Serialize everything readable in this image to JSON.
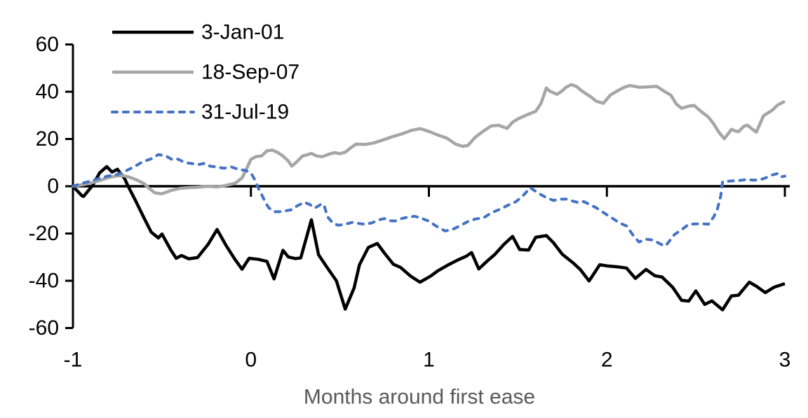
{
  "chart_data": {
    "type": "line",
    "title": "",
    "xlabel": "Months around first ease",
    "ylabel": "",
    "xlim": [
      -1,
      3
    ],
    "ylim": [
      -60,
      60
    ],
    "x_ticks": [
      -1,
      0,
      1,
      2,
      3
    ],
    "y_ticks": [
      60,
      40,
      20,
      0,
      -20,
      -40,
      -60
    ],
    "grid": false,
    "legend_position": "top-left",
    "colors": {
      "axis": "#000000",
      "tick_label": "#000000",
      "xlabel": "#595959",
      "background": "#ffffff"
    },
    "series": [
      {
        "name": "3-Jan-01",
        "color": "#000000",
        "style": "solid",
        "width": 4.5,
        "points": [
          [
            -1,
            0
          ],
          [
            -0.95,
            -4
          ],
          [
            -0.94,
            -4.3
          ],
          [
            -0.89,
            0.3
          ],
          [
            -0.85,
            5.7
          ],
          [
            -0.81,
            8.3
          ],
          [
            -0.78,
            6
          ],
          [
            -0.75,
            7.2
          ],
          [
            -0.71,
            3.3
          ],
          [
            -0.69,
            0
          ],
          [
            -0.65,
            -5.8
          ],
          [
            -0.6,
            -13.5
          ],
          [
            -0.56,
            -19.4
          ],
          [
            -0.52,
            -21.9
          ],
          [
            -0.5,
            -20.2
          ],
          [
            -0.45,
            -27
          ],
          [
            -0.42,
            -30.5
          ],
          [
            -0.39,
            -29.3
          ],
          [
            -0.35,
            -30.7
          ],
          [
            -0.3,
            -30.2
          ],
          [
            -0.24,
            -24.5
          ],
          [
            -0.19,
            -18.3
          ],
          [
            -0.14,
            -25
          ],
          [
            -0.09,
            -30.9
          ],
          [
            -0.05,
            -35.1
          ],
          [
            -0.01,
            -30.5
          ],
          [
            0.04,
            -30.9
          ],
          [
            0.09,
            -31.8
          ],
          [
            0.13,
            -39.2
          ],
          [
            0.18,
            -27.1
          ],
          [
            0.21,
            -29.9
          ],
          [
            0.25,
            -30.6
          ],
          [
            0.28,
            -30.3
          ],
          [
            0.34,
            -14.2
          ],
          [
            0.38,
            -29
          ],
          [
            0.43,
            -34.6
          ],
          [
            0.48,
            -40
          ],
          [
            0.53,
            -52
          ],
          [
            0.58,
            -43
          ],
          [
            0.61,
            -33.2
          ],
          [
            0.66,
            -25.9
          ],
          [
            0.71,
            -24.2
          ],
          [
            0.75,
            -28.3
          ],
          [
            0.8,
            -33
          ],
          [
            0.84,
            -34.3
          ],
          [
            0.9,
            -38.2
          ],
          [
            0.95,
            -40.6
          ],
          [
            1.01,
            -38
          ],
          [
            1.05,
            -35.8
          ],
          [
            1.11,
            -33.2
          ],
          [
            1.16,
            -31.3
          ],
          [
            1.21,
            -29.6
          ],
          [
            1.24,
            -28.1
          ],
          [
            1.28,
            -35
          ],
          [
            1.33,
            -31.5
          ],
          [
            1.37,
            -28.9
          ],
          [
            1.42,
            -24.7
          ],
          [
            1.47,
            -21.2
          ],
          [
            1.51,
            -26.8
          ],
          [
            1.56,
            -27
          ],
          [
            1.6,
            -21.6
          ],
          [
            1.66,
            -20.9
          ],
          [
            1.7,
            -23.9
          ],
          [
            1.75,
            -28.8
          ],
          [
            1.81,
            -32.4
          ],
          [
            1.85,
            -35.2
          ],
          [
            1.9,
            -40.1
          ],
          [
            1.96,
            -33.2
          ],
          [
            2,
            -33.7
          ],
          [
            2.06,
            -34.1
          ],
          [
            2.11,
            -34.6
          ],
          [
            2.16,
            -39
          ],
          [
            2.22,
            -35.2
          ],
          [
            2.27,
            -37.9
          ],
          [
            2.31,
            -38.4
          ],
          [
            2.37,
            -42.8
          ],
          [
            2.42,
            -48.3
          ],
          [
            2.46,
            -48.6
          ],
          [
            2.5,
            -44.3
          ],
          [
            2.55,
            -50
          ],
          [
            2.59,
            -48.5
          ],
          [
            2.65,
            -52.3
          ],
          [
            2.7,
            -46.4
          ],
          [
            2.74,
            -46.1
          ],
          [
            2.8,
            -40.6
          ],
          [
            2.84,
            -42.3
          ],
          [
            2.89,
            -45
          ],
          [
            2.94,
            -42.7
          ],
          [
            3,
            -41.2
          ]
        ]
      },
      {
        "name": "18-Sep-07",
        "color": "#a6a6a6",
        "style": "solid",
        "width": 4.5,
        "points": [
          [
            -1,
            0
          ],
          [
            -0.95,
            0.6
          ],
          [
            -0.9,
            1.4
          ],
          [
            -0.85,
            2.4
          ],
          [
            -0.8,
            3.7
          ],
          [
            -0.75,
            4.4
          ],
          [
            -0.72,
            4.5
          ],
          [
            -0.68,
            3.8
          ],
          [
            -0.64,
            2.6
          ],
          [
            -0.6,
            1.1
          ],
          [
            -0.57,
            -1
          ],
          [
            -0.54,
            -2.8
          ],
          [
            -0.5,
            -3.2
          ],
          [
            -0.45,
            -1.8
          ],
          [
            -0.4,
            -0.9
          ],
          [
            -0.35,
            -0.6
          ],
          [
            -0.3,
            -0.4
          ],
          [
            -0.24,
            0
          ],
          [
            -0.19,
            -0.3
          ],
          [
            -0.15,
            0.2
          ],
          [
            -0.09,
            1.2
          ],
          [
            -0.05,
            3.5
          ],
          [
            -0.03,
            6.5
          ],
          [
            0,
            11.4
          ],
          [
            0.03,
            12.6
          ],
          [
            0.06,
            12.8
          ],
          [
            0.09,
            15
          ],
          [
            0.12,
            15.3
          ],
          [
            0.15,
            14.3
          ],
          [
            0.18,
            12.8
          ],
          [
            0.21,
            10.7
          ],
          [
            0.23,
            8.5
          ],
          [
            0.26,
            10.5
          ],
          [
            0.29,
            12.8
          ],
          [
            0.32,
            13.4
          ],
          [
            0.34,
            13.9
          ],
          [
            0.37,
            12.8
          ],
          [
            0.4,
            12.5
          ],
          [
            0.44,
            13.6
          ],
          [
            0.47,
            14.2
          ],
          [
            0.5,
            13.8
          ],
          [
            0.53,
            14.4
          ],
          [
            0.56,
            16.2
          ],
          [
            0.59,
            17.8
          ],
          [
            0.64,
            17.7
          ],
          [
            0.69,
            18.3
          ],
          [
            0.75,
            19.8
          ],
          [
            0.8,
            21.1
          ],
          [
            0.85,
            22.2
          ],
          [
            0.9,
            23.6
          ],
          [
            0.95,
            24.4
          ],
          [
            1,
            23.2
          ],
          [
            1.05,
            21.7
          ],
          [
            1.1,
            20.4
          ],
          [
            1.15,
            17.8
          ],
          [
            1.19,
            16.9
          ],
          [
            1.22,
            17.3
          ],
          [
            1.26,
            20.7
          ],
          [
            1.3,
            23
          ],
          [
            1.35,
            25.5
          ],
          [
            1.39,
            25.8
          ],
          [
            1.44,
            24.5
          ],
          [
            1.47,
            27.1
          ],
          [
            1.5,
            28.5
          ],
          [
            1.55,
            30.2
          ],
          [
            1.6,
            31.7
          ],
          [
            1.63,
            35.1
          ],
          [
            1.66,
            41.6
          ],
          [
            1.68,
            40.2
          ],
          [
            1.72,
            38.9
          ],
          [
            1.75,
            40.4
          ],
          [
            1.77,
            41.9
          ],
          [
            1.8,
            43
          ],
          [
            1.83,
            42.2
          ],
          [
            1.85,
            40.9
          ],
          [
            1.88,
            39.3
          ],
          [
            1.91,
            37.8
          ],
          [
            1.94,
            36
          ],
          [
            1.98,
            35.1
          ],
          [
            2.02,
            38.6
          ],
          [
            2.06,
            40.4
          ],
          [
            2.1,
            42
          ],
          [
            2.13,
            42.6
          ],
          [
            2.18,
            41.9
          ],
          [
            2.22,
            42
          ],
          [
            2.28,
            42.3
          ],
          [
            2.32,
            40.3
          ],
          [
            2.36,
            38.5
          ],
          [
            2.39,
            34.8
          ],
          [
            2.42,
            33
          ],
          [
            2.46,
            33.9
          ],
          [
            2.49,
            34.2
          ],
          [
            2.53,
            31.6
          ],
          [
            2.57,
            29.3
          ],
          [
            2.6,
            26.4
          ],
          [
            2.63,
            22.8
          ],
          [
            2.66,
            20.1
          ],
          [
            2.7,
            24.1
          ],
          [
            2.72,
            23.4
          ],
          [
            2.74,
            23.1
          ],
          [
            2.77,
            25.4
          ],
          [
            2.79,
            25.8
          ],
          [
            2.82,
            24
          ],
          [
            2.84,
            22.9
          ],
          [
            2.88,
            29.8
          ],
          [
            2.9,
            30.8
          ],
          [
            2.93,
            32.2
          ],
          [
            2.96,
            34.4
          ],
          [
            3,
            35.9
          ]
        ]
      },
      {
        "name": "31-Jul-19",
        "color": "#4472c4",
        "style": "dashed",
        "width": 4,
        "points": [
          [
            -1,
            0
          ],
          [
            -0.95,
            1.2
          ],
          [
            -0.9,
            2.2
          ],
          [
            -0.85,
            3.4
          ],
          [
            -0.8,
            4.4
          ],
          [
            -0.75,
            5
          ],
          [
            -0.7,
            6.6
          ],
          [
            -0.65,
            8.5
          ],
          [
            -0.61,
            10.3
          ],
          [
            -0.56,
            11.6
          ],
          [
            -0.52,
            13.4
          ],
          [
            -0.48,
            12.9
          ],
          [
            -0.44,
            11.2
          ],
          [
            -0.41,
            11.5
          ],
          [
            -0.37,
            10
          ],
          [
            -0.33,
            9.6
          ],
          [
            -0.3,
            9.1
          ],
          [
            -0.26,
            9.7
          ],
          [
            -0.23,
            8.5
          ],
          [
            -0.19,
            8.1
          ],
          [
            -0.15,
            7.6
          ],
          [
            -0.11,
            8.2
          ],
          [
            -0.07,
            7.1
          ],
          [
            -0.03,
            6.7
          ],
          [
            0,
            5.6
          ],
          [
            0.02,
            3
          ],
          [
            0.04,
            -0.6
          ],
          [
            0.06,
            -3.5
          ],
          [
            0.08,
            -6.6
          ],
          [
            0.1,
            -9.1
          ],
          [
            0.13,
            -10.8
          ],
          [
            0.16,
            -10.8
          ],
          [
            0.19,
            -10.5
          ],
          [
            0.23,
            -9.9
          ],
          [
            0.26,
            -8.3
          ],
          [
            0.3,
            -6.8
          ],
          [
            0.33,
            -7.7
          ],
          [
            0.36,
            -9.2
          ],
          [
            0.39,
            -7.8
          ],
          [
            0.41,
            -7.7
          ],
          [
            0.43,
            -12.9
          ],
          [
            0.46,
            -15.6
          ],
          [
            0.49,
            -16.5
          ],
          [
            0.53,
            -16.1
          ],
          [
            0.57,
            -15.3
          ],
          [
            0.61,
            -15.8
          ],
          [
            0.64,
            -16.1
          ],
          [
            0.68,
            -15.5
          ],
          [
            0.72,
            -14.2
          ],
          [
            0.75,
            -13.7
          ],
          [
            0.78,
            -14.6
          ],
          [
            0.81,
            -14.7
          ],
          [
            0.85,
            -13.6
          ],
          [
            0.88,
            -13.1
          ],
          [
            0.92,
            -12.7
          ],
          [
            0.95,
            -13.3
          ],
          [
            1,
            -14.8
          ],
          [
            1.04,
            -16.8
          ],
          [
            1.09,
            -18.9
          ],
          [
            1.13,
            -18.4
          ],
          [
            1.17,
            -16.9
          ],
          [
            1.22,
            -14.9
          ],
          [
            1.26,
            -13.9
          ],
          [
            1.31,
            -13.2
          ],
          [
            1.35,
            -11.3
          ],
          [
            1.4,
            -9.7
          ],
          [
            1.44,
            -8.2
          ],
          [
            1.49,
            -6.5
          ],
          [
            1.53,
            -3.9
          ],
          [
            1.57,
            -0.6
          ],
          [
            1.61,
            -2.7
          ],
          [
            1.65,
            -4.4
          ],
          [
            1.7,
            -6
          ],
          [
            1.73,
            -5.5
          ],
          [
            1.77,
            -5.4
          ],
          [
            1.8,
            -6.1
          ],
          [
            1.84,
            -6.9
          ],
          [
            1.87,
            -6.5
          ],
          [
            1.9,
            -7.6
          ],
          [
            1.94,
            -9.1
          ],
          [
            1.99,
            -11.6
          ],
          [
            2.03,
            -13.5
          ],
          [
            2.07,
            -15.5
          ],
          [
            2.11,
            -16.8
          ],
          [
            2.15,
            -21
          ],
          [
            2.18,
            -23.6
          ],
          [
            2.22,
            -22.4
          ],
          [
            2.26,
            -22.8
          ],
          [
            2.31,
            -24.8
          ],
          [
            2.33,
            -25.2
          ],
          [
            2.38,
            -20.4
          ],
          [
            2.42,
            -18.4
          ],
          [
            2.46,
            -16.1
          ],
          [
            2.5,
            -15.9
          ],
          [
            2.54,
            -15.9
          ],
          [
            2.57,
            -16.1
          ],
          [
            2.6,
            -13
          ],
          [
            2.62,
            -9.9
          ],
          [
            2.64,
            -3.9
          ],
          [
            2.65,
            1.9
          ],
          [
            2.69,
            2.2
          ],
          [
            2.74,
            2.4
          ],
          [
            2.78,
            2.8
          ],
          [
            2.82,
            2.6
          ],
          [
            2.86,
            2.7
          ],
          [
            2.89,
            3.5
          ],
          [
            2.93,
            4.8
          ],
          [
            2.96,
            5.4
          ],
          [
            2.98,
            4
          ],
          [
            3,
            4.3
          ]
        ]
      }
    ],
    "legend": [
      {
        "label": "3-Jan-01"
      },
      {
        "label": "18-Sep-07"
      },
      {
        "label": "31-Jul-19"
      }
    ]
  }
}
